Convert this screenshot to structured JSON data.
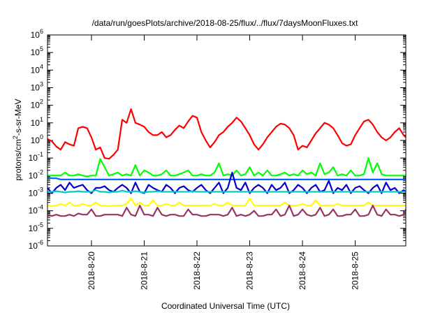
{
  "chart_data": {
    "type": "line",
    "title": "/data/run/goesPlots/archive/2018-08-25/flux/../flux/7daysMoonFluxes.txt",
    "xlabel": "Coordinated Universal Time (UTC)",
    "ylabel": {
      "prefix": "protons/cm",
      "sup": "2",
      "suffix": "-s-sr-MeV"
    },
    "yscale": "log",
    "ylim": [
      1e-06,
      1000000.0
    ],
    "xlim": [
      "2018-08-19 04:00",
      "2018-08-25 23:00"
    ],
    "grid": false,
    "y_ticks": [
      {
        "value": 1e-06,
        "base": "10",
        "exp": "-6"
      },
      {
        "value": 1e-05,
        "base": "10",
        "exp": "-5"
      },
      {
        "value": 0.0001,
        "base": "10",
        "exp": "-4"
      },
      {
        "value": 0.001,
        "base": "10",
        "exp": "-3"
      },
      {
        "value": 0.01,
        "base": "10",
        "exp": "-2"
      },
      {
        "value": 0.1,
        "base": "10",
        "exp": "-1"
      },
      {
        "value": 1.0,
        "base": "10",
        "exp": "0"
      },
      {
        "value": 10.0,
        "base": "10",
        "exp": "1"
      },
      {
        "value": 100.0,
        "base": "10",
        "exp": "2"
      },
      {
        "value": 1000.0,
        "base": "10",
        "exp": "3"
      },
      {
        "value": 10000.0,
        "base": "10",
        "exp": "4"
      },
      {
        "value": 100000.0,
        "base": "10",
        "exp": "5"
      },
      {
        "value": 1000000.0,
        "base": "10",
        "exp": "6"
      }
    ],
    "x_ticks": [
      {
        "value": "2018-08-20 00:00",
        "label": "2018-8-20"
      },
      {
        "value": "2018-08-21 00:00",
        "label": "2018-8-21"
      },
      {
        "value": "2018-08-22 00:00",
        "label": "2018-8-22"
      },
      {
        "value": "2018-08-23 00:00",
        "label": "2018-8-23"
      },
      {
        "value": "2018-08-24 00:00",
        "label": "2018-8-24"
      },
      {
        "value": "2018-08-25 00:00",
        "label": "2018-8-25"
      }
    ],
    "series": [
      {
        "color": "#ff0000",
        "x": [
          "2018-08-19 04:00",
          "2018-08-19 06:00",
          "2018-08-19 08:00",
          "2018-08-19 10:00",
          "2018-08-19 12:00",
          "2018-08-19 14:00",
          "2018-08-19 16:00",
          "2018-08-19 18:00",
          "2018-08-19 20:00",
          "2018-08-19 22:00",
          "2018-08-20 00:00",
          "2018-08-20 02:00",
          "2018-08-20 04:00",
          "2018-08-20 06:00",
          "2018-08-20 08:00",
          "2018-08-20 10:00",
          "2018-08-20 12:00",
          "2018-08-20 14:00",
          "2018-08-20 16:00",
          "2018-08-20 18:00",
          "2018-08-20 20:00",
          "2018-08-20 22:00",
          "2018-08-21 00:00",
          "2018-08-21 02:00",
          "2018-08-21 04:00",
          "2018-08-21 06:00",
          "2018-08-21 08:00",
          "2018-08-21 10:00",
          "2018-08-21 12:00",
          "2018-08-21 14:00",
          "2018-08-21 16:00",
          "2018-08-21 18:00",
          "2018-08-21 20:00",
          "2018-08-21 22:00",
          "2018-08-22 00:00",
          "2018-08-22 02:00",
          "2018-08-22 04:00",
          "2018-08-22 06:00",
          "2018-08-22 08:00",
          "2018-08-22 10:00",
          "2018-08-22 12:00",
          "2018-08-22 14:00",
          "2018-08-22 16:00",
          "2018-08-22 18:00",
          "2018-08-22 20:00",
          "2018-08-22 22:00",
          "2018-08-23 00:00",
          "2018-08-23 02:00",
          "2018-08-23 04:00",
          "2018-08-23 06:00",
          "2018-08-23 08:00",
          "2018-08-23 10:00",
          "2018-08-23 12:00",
          "2018-08-23 14:00",
          "2018-08-23 16:00",
          "2018-08-23 18:00",
          "2018-08-23 20:00",
          "2018-08-23 22:00",
          "2018-08-24 00:00",
          "2018-08-24 02:00",
          "2018-08-24 04:00",
          "2018-08-24 06:00",
          "2018-08-24 08:00",
          "2018-08-24 10:00",
          "2018-08-24 12:00",
          "2018-08-24 14:00",
          "2018-08-24 16:00",
          "2018-08-24 18:00",
          "2018-08-24 20:00",
          "2018-08-24 22:00",
          "2018-08-25 00:00",
          "2018-08-25 02:00",
          "2018-08-25 04:00",
          "2018-08-25 06:00",
          "2018-08-25 08:00",
          "2018-08-25 10:00",
          "2018-08-25 12:00",
          "2018-08-25 14:00",
          "2018-08-25 16:00",
          "2018-08-25 18:00",
          "2018-08-25 20:00",
          "2018-08-25 22:00",
          "2018-08-25 23:00"
        ],
        "values": [
          1.2,
          0.9,
          0.45,
          0.3,
          0.8,
          0.6,
          0.5,
          5,
          6,
          5,
          1.5,
          0.3,
          0.4,
          0.1,
          0.09,
          0.15,
          0.3,
          15,
          10,
          60,
          10,
          8,
          6,
          3,
          2,
          2,
          3,
          1.5,
          2,
          4,
          7,
          5,
          12,
          25,
          20,
          3,
          1,
          0.4,
          0.8,
          2,
          3,
          6,
          10,
          20,
          12,
          5,
          2,
          0.6,
          0.3,
          0.6,
          1.5,
          3,
          6,
          9,
          8,
          5,
          2,
          0.3,
          0.5,
          0.4,
          1,
          2.5,
          5,
          10,
          8,
          5,
          2,
          0.7,
          0.5,
          0.6,
          2,
          5,
          12,
          15,
          8,
          3,
          1.5,
          1,
          1.5,
          3,
          5,
          2,
          1.5
        ]
      },
      {
        "color": "#00ff00",
        "x": "same-as-red",
        "values": [
          0.01,
          0.01,
          0.01,
          0.01,
          0.015,
          0.01,
          0.01,
          0.012,
          0.01,
          0.009,
          0.01,
          0.01,
          0.09,
          0.03,
          0.01,
          0.012,
          0.015,
          0.01,
          0.012,
          0.01,
          0.04,
          0.01,
          0.02,
          0.015,
          0.01,
          0.01,
          0.012,
          0.02,
          0.01,
          0.01,
          0.012,
          0.015,
          0.02,
          0.01,
          0.01,
          0.012,
          0.01,
          0.01,
          0.015,
          0.05,
          0.01,
          0.012,
          0.01,
          0.02,
          0.01,
          0.012,
          0.03,
          0.01,
          0.015,
          0.01,
          0.02,
          0.01,
          0.01,
          0.012,
          0.015,
          0.01,
          0.012,
          0.01,
          0.02,
          0.012,
          0.015,
          0.01,
          0.05,
          0.012,
          0.015,
          0.03,
          0.01,
          0.012,
          0.01,
          0.02,
          0.01,
          0.01,
          0.012,
          0.1,
          0.015,
          0.05,
          0.012,
          0.01,
          0.01,
          0.01,
          0.01,
          0.01,
          0.01
        ]
      },
      {
        "color": "#0066ff",
        "x": "same-as-red",
        "values": [
          0.008,
          0.007,
          0.007,
          0.006,
          0.006,
          0.006,
          0.006,
          0.006,
          0.006,
          0.006,
          0.006,
          0.006,
          0.006,
          0.006,
          0.006,
          0.006,
          0.006,
          0.006,
          0.006,
          0.006,
          0.006,
          0.006,
          0.006,
          0.006,
          0.006,
          0.006,
          0.006,
          0.006,
          0.006,
          0.006,
          0.006,
          0.006,
          0.006,
          0.006,
          0.006,
          0.006,
          0.006,
          0.006,
          0.006,
          0.006,
          0.006,
          0.006,
          0.006,
          0.006,
          0.006,
          0.006,
          0.006,
          0.006,
          0.006,
          0.006,
          0.006,
          0.006,
          0.006,
          0.006,
          0.006,
          0.006,
          0.006,
          0.006,
          0.006,
          0.006,
          0.006,
          0.006,
          0.006,
          0.006,
          0.006,
          0.006,
          0.006,
          0.006,
          0.006,
          0.006,
          0.006,
          0.006,
          0.006,
          0.006,
          0.006,
          0.006,
          0.006,
          0.006,
          0.006,
          0.006,
          0.006,
          0.006,
          0.006
        ]
      },
      {
        "color": "#0000cc",
        "x": "same-as-red",
        "values": [
          0.002,
          0.001,
          0.002,
          0.003,
          0.0015,
          0.004,
          0.002,
          0.0025,
          0.003,
          0.0015,
          0.001,
          0.002,
          0.002,
          0.0025,
          0.0015,
          0.0012,
          0.002,
          0.003,
          0.002,
          0.001,
          0.004,
          0.0012,
          0.001,
          0.003,
          0.002,
          0.0015,
          0.0012,
          0.003,
          0.002,
          0.001,
          0.002,
          0.0025,
          0.0015,
          0.0012,
          0.002,
          0.003,
          0.0015,
          0.001,
          0.002,
          0.004,
          0.001,
          0.002,
          0.015,
          0.002,
          0.0015,
          0.004,
          0.001,
          0.002,
          0.003,
          0.002,
          0.001,
          0.003,
          0.0015,
          0.002,
          0.004,
          0.001,
          0.0015,
          0.003,
          0.002,
          0.001,
          0.002,
          0.003,
          0.0012,
          0.0015,
          0.005,
          0.001,
          0.002,
          0.0015,
          0.003,
          0.001,
          0.002,
          0.0025,
          0.0015,
          0.001,
          0.002,
          0.003,
          0.001,
          0.004,
          0.0015,
          0.002,
          0.001,
          0.0015,
          0.0012
        ]
      },
      {
        "color": "#00cccc",
        "x": "same-as-red",
        "values": [
          0.0012,
          0.0012,
          0.0013,
          0.0012,
          0.0011,
          0.0012,
          0.0012,
          0.0013,
          0.0012,
          0.0012,
          0.0012,
          0.0015,
          0.0012,
          0.0012,
          0.0011,
          0.0012,
          0.0012,
          0.0014,
          0.0012,
          0.0012,
          0.0013,
          0.0012,
          0.0011,
          0.0012,
          0.0012,
          0.0013,
          0.0012,
          0.0012,
          0.0012,
          0.0012,
          0.0012,
          0.0012,
          0.0012,
          0.0013,
          0.0012,
          0.0012,
          0.0012,
          0.0012,
          0.0012,
          0.0012,
          0.0012,
          0.0012,
          0.0012,
          0.0012,
          0.0012,
          0.0012,
          0.0012,
          0.0012,
          0.0012,
          0.0012,
          0.0012,
          0.0012,
          0.0012,
          0.0012,
          0.0012,
          0.0012,
          0.0012,
          0.0012,
          0.0012,
          0.0012,
          0.0012,
          0.0012,
          0.0012,
          0.0012,
          0.0012,
          0.0012,
          0.0012,
          0.0012,
          0.0012,
          0.0012,
          0.0012,
          0.0012,
          0.0012,
          0.0012,
          0.0012,
          0.0012,
          0.0012,
          0.0012,
          0.0012,
          0.0012,
          0.0012,
          0.0012,
          0.0012
        ]
      },
      {
        "color": "#ffff00",
        "x": "same-as-red",
        "values": [
          0.0002,
          0.00018,
          0.0002,
          0.00025,
          0.0002,
          0.0003,
          0.0002,
          0.0002,
          0.00025,
          0.0002,
          0.0002,
          0.0003,
          0.0002,
          0.0002,
          0.00018,
          0.0002,
          0.0002,
          0.0002,
          0.00025,
          0.0005,
          0.0002,
          0.0003,
          0.0002,
          0.0002,
          0.0004,
          0.0002,
          0.0002,
          0.00025,
          0.0002,
          0.0002,
          0.0003,
          0.0002,
          0.0002,
          0.0002,
          0.0002,
          0.0002,
          0.0002,
          0.0002,
          0.00025,
          0.0002,
          0.0002,
          0.0003,
          0.0002,
          0.0002,
          0.0002,
          0.0002,
          0.0005,
          0.0002,
          0.0002,
          0.0002,
          0.0002,
          0.0002,
          0.0002,
          0.0002,
          0.0003,
          0.0002,
          0.0002,
          0.0002,
          0.00025,
          0.0002,
          0.0002,
          0.0004,
          0.0002,
          0.0002,
          0.0002,
          0.0002,
          0.00025,
          0.0002,
          0.0002,
          0.0002,
          0.0002,
          0.0002,
          0.0002,
          0.0003,
          0.0002,
          0.0002,
          0.0002,
          0.0002,
          0.0002,
          0.0002,
          0.0002,
          0.0002,
          0.0002
        ]
      },
      {
        "color": "#993366",
        "x": "same-as-red",
        "values": [
          6e-05,
          5e-05,
          6e-05,
          5e-05,
          5e-05,
          6e-05,
          5e-05,
          7e-05,
          6e-05,
          6e-05,
          0.00012,
          5e-05,
          5e-05,
          6e-05,
          6e-05,
          6e-05,
          6e-05,
          5e-05,
          0.00015,
          6e-05,
          5e-05,
          0.0002,
          6e-05,
          6e-05,
          5e-05,
          0.00015,
          6e-05,
          5e-05,
          6e-05,
          6e-05,
          5e-05,
          5e-05,
          0.00012,
          6e-05,
          6e-05,
          5e-05,
          5e-05,
          6e-05,
          6e-05,
          6e-05,
          5e-05,
          6e-05,
          0.00015,
          5e-05,
          6e-05,
          5e-05,
          6e-05,
          0.0001,
          5e-05,
          5e-05,
          6e-05,
          6e-05,
          0.00012,
          5e-05,
          6e-05,
          0.0002,
          5e-05,
          6e-05,
          0.00012,
          6e-05,
          5e-05,
          6e-05,
          0.00015,
          5e-05,
          6e-05,
          0.00012,
          5e-05,
          5e-05,
          6e-05,
          6e-05,
          0.00012,
          5e-05,
          5e-05,
          6e-05,
          0.0002,
          6e-05,
          5e-05,
          0.00012,
          6e-05,
          6e-05,
          5e-05,
          6e-05,
          0.00012
        ]
      }
    ]
  }
}
